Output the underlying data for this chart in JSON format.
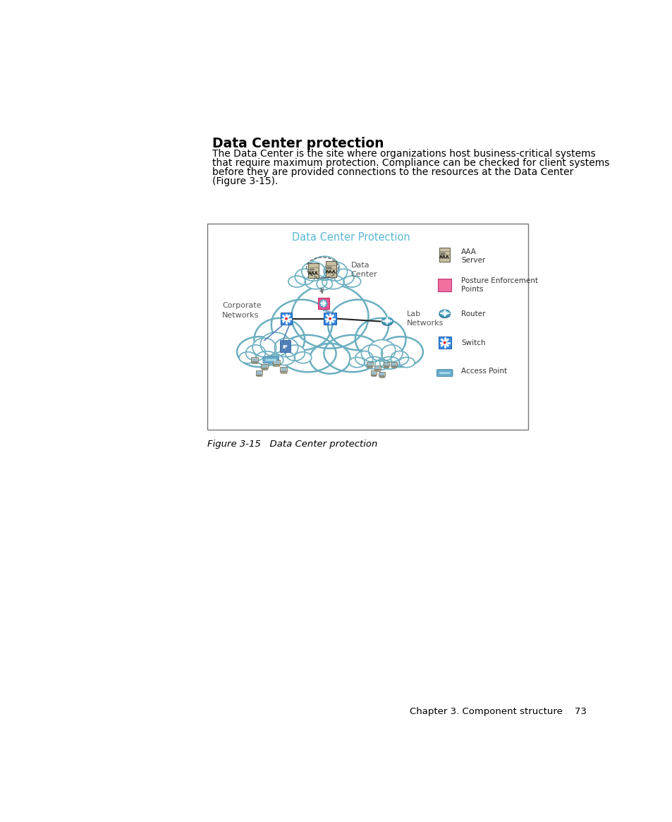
{
  "title": "Data Center protection",
  "body_text_lines": [
    "The Data Center is the site where organizations host business-critical systems",
    "that require maximum protection. Compliance can be checked for client systems",
    "before they are provided connections to the resources at the Data Center",
    "(Figure 3-15)."
  ],
  "diagram_title": "Data Center Protection",
  "diagram_title_color": "#5BB8D4",
  "figure_caption": "Figure 3-15   Data Center protection",
  "footer_text": "Chapter 3. Component structure    73",
  "background_color": "#ffffff",
  "box_border_color": "#555555",
  "cloud_edge_color": "#6BAFC0",
  "cloud_face_color": "#ffffff",
  "legend_items": [
    {
      "label": "AAA\nServer",
      "type": "server"
    },
    {
      "label": "Posture Enforcement\nPoints",
      "type": "pep"
    },
    {
      "label": "Router",
      "type": "router"
    },
    {
      "label": "Switch",
      "type": "switch"
    },
    {
      "label": "Access Point",
      "type": "ap"
    }
  ]
}
